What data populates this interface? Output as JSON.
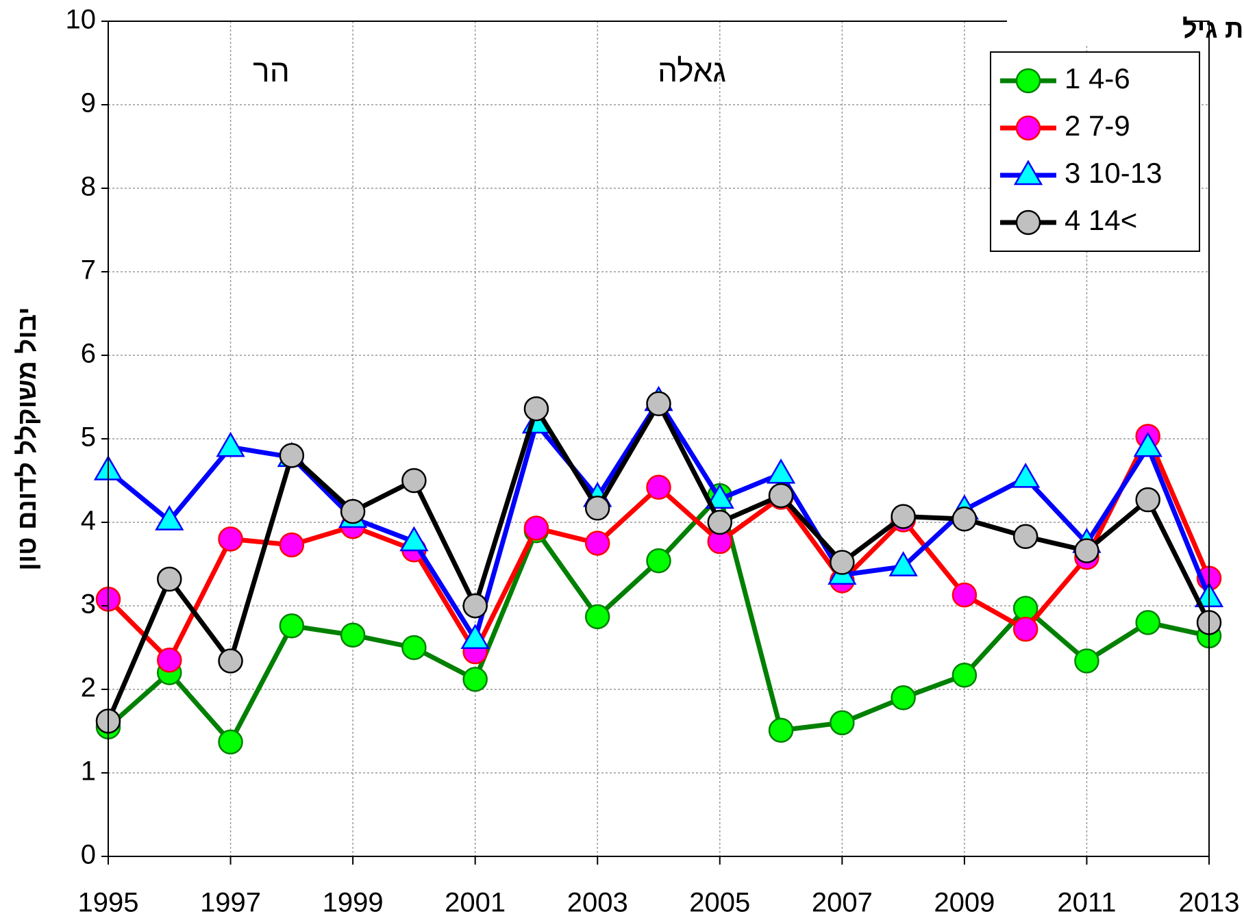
{
  "chart_data": {
    "type": "line",
    "ylabel": "יבול משוקלל לדונם טון",
    "annotations": [
      "הר",
      "גאלה"
    ],
    "legend_title": "קבוצות גיל",
    "legend": "upper right",
    "grid": true,
    "x": [
      1995,
      1996,
      1997,
      1998,
      1999,
      2000,
      2001,
      2002,
      2003,
      2004,
      2005,
      2006,
      2007,
      2008,
      2009,
      2010,
      2011,
      2012,
      2013
    ],
    "xlim": [
      1995,
      2013
    ],
    "xticks": [
      1995,
      1997,
      1999,
      2001,
      2003,
      2005,
      2007,
      2009,
      2011,
      2013
    ],
    "ylim": [
      0,
      10
    ],
    "yticks": [
      0,
      1,
      2,
      3,
      4,
      5,
      6,
      7,
      8,
      9,
      10
    ],
    "series": [
      {
        "name": "1 4-6",
        "color": "#008000",
        "marker": "circle",
        "marker_fill": "#00ff00",
        "values": [
          1.55,
          2.2,
          1.37,
          2.76,
          2.65,
          2.5,
          2.12,
          3.9,
          2.87,
          3.54,
          4.32,
          1.51,
          1.6,
          1.9,
          2.17,
          2.97,
          2.34,
          2.8,
          2.64
        ]
      },
      {
        "name": "2 7-9",
        "color": "#ff0000",
        "marker": "circle",
        "marker_fill": "#ff00ff",
        "values": [
          3.08,
          2.35,
          3.8,
          3.73,
          3.95,
          3.67,
          2.45,
          3.93,
          3.75,
          4.42,
          3.77,
          4.3,
          3.3,
          4.03,
          3.13,
          2.72,
          3.58,
          5.03,
          3.33
        ]
      },
      {
        "name": "3 10-13",
        "color": "#0000ff",
        "marker": "triangle",
        "marker_fill": "#00ffff",
        "values": [
          4.62,
          4.02,
          4.9,
          4.78,
          4.05,
          3.77,
          2.6,
          5.18,
          4.3,
          5.45,
          4.28,
          4.58,
          3.37,
          3.47,
          4.15,
          4.53,
          3.75,
          4.9,
          3.1
        ]
      },
      {
        "name": "4 14<",
        "color": "#000000",
        "marker": "circle",
        "marker_fill": "#c0c0c0",
        "values": [
          1.62,
          3.32,
          2.34,
          4.8,
          4.13,
          4.5,
          3.0,
          5.36,
          4.17,
          5.42,
          4.0,
          4.32,
          3.52,
          4.07,
          4.04,
          3.83,
          3.66,
          4.27,
          2.8
        ]
      }
    ]
  }
}
